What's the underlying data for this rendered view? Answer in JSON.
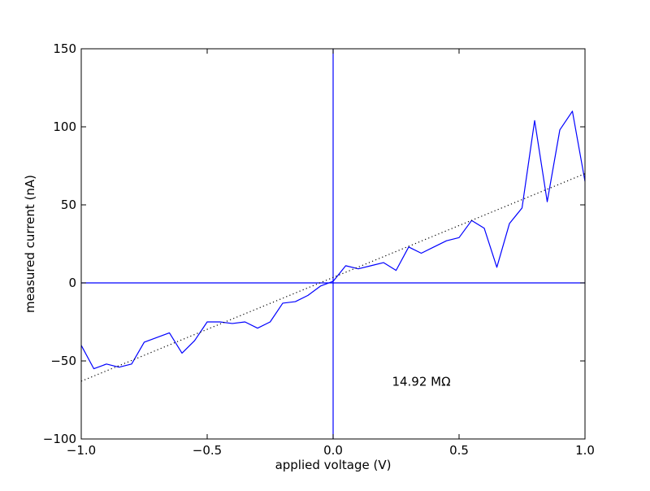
{
  "chart_data": {
    "type": "line",
    "title": "",
    "xlabel": "applied voltage (V)",
    "ylabel": "measured current (nA)",
    "xlim": [
      -1.0,
      1.0
    ],
    "ylim": [
      -100,
      150
    ],
    "xticks": [
      -1.0,
      -0.5,
      0.0,
      0.5,
      1.0
    ],
    "xtick_labels": [
      "−1.0",
      "−0.5",
      "0.0",
      "0.5",
      "1.0"
    ],
    "yticks": [
      -100,
      -50,
      0,
      50,
      100,
      150
    ],
    "ytick_labels": [
      "−100",
      "−50",
      "0",
      "50",
      "100",
      "150"
    ],
    "grid": false,
    "legend": "none",
    "series": [
      {
        "color": "#0000ff",
        "style": "solid",
        "x": [
          -1.0,
          -0.95,
          -0.9,
          -0.85,
          -0.8,
          -0.75,
          -0.7,
          -0.65,
          -0.6,
          -0.55,
          -0.5,
          -0.45,
          -0.4,
          -0.35,
          -0.3,
          -0.25,
          -0.2,
          -0.15,
          -0.1,
          -0.05,
          0.0,
          0.05,
          0.1,
          0.15,
          0.2,
          0.25,
          0.3,
          0.35,
          0.4,
          0.45,
          0.5,
          0.55,
          0.6,
          0.65,
          0.7,
          0.75,
          0.8,
          0.85,
          0.9,
          0.95,
          1.0
        ],
        "y": [
          -40,
          -55,
          -52,
          -54,
          -52,
          -38,
          -35,
          -32,
          -45,
          -37,
          -25,
          -25,
          -26,
          -25,
          -29,
          -25,
          -13,
          -12,
          -8,
          -2,
          1,
          11,
          9,
          11,
          13,
          8,
          23,
          19,
          23,
          27,
          29,
          40,
          35,
          10,
          38,
          48,
          104,
          52,
          98,
          110,
          65
        ]
      },
      {
        "color": "#000000",
        "style": "dotted",
        "x": [
          -1.0,
          1.0
        ],
        "y": [
          -63,
          70
        ]
      }
    ],
    "reference_lines": [
      {
        "axis": "x",
        "value": 0,
        "color": "#0000ff"
      },
      {
        "axis": "y",
        "value": 0,
        "color": "#0000ff"
      }
    ],
    "annotations": [
      {
        "text": "14.92 MΩ",
        "x": 0.35,
        "y": -66
      }
    ]
  }
}
